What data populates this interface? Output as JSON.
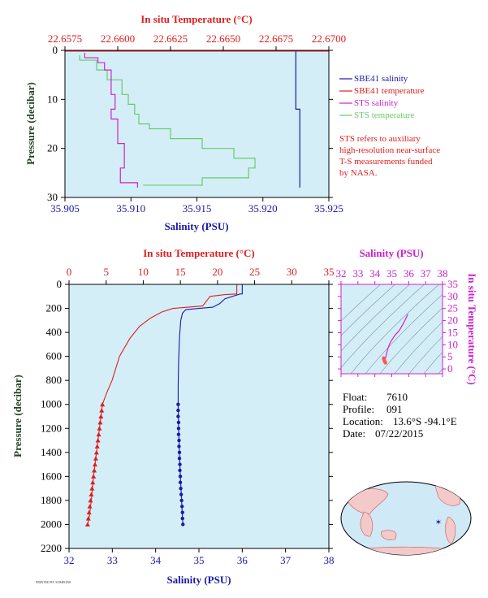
{
  "colors": {
    "blue": "#1a1aa8",
    "red": "#e01e1e",
    "magenta": "#cc22cc",
    "pink": "#f08f8f",
    "green": "#66cc66",
    "plot_bg": "#d4eef8",
    "dark_green": "#224422"
  },
  "chart_data": [
    {
      "type": "line",
      "xlabel_bottom": "Salinity (PSU)",
      "xlabel_top": "In situ Temperature (°C)",
      "ylabel": "Pressure (decibar)",
      "salinity_ticks": [
        "35.905",
        "35.910",
        "35.915",
        "35.920",
        "35.925"
      ],
      "temperature_ticks": [
        "22.6575",
        "22.6600",
        "22.6625",
        "22.6650",
        "22.6675",
        "22.6700"
      ],
      "pressure_ticks": [
        "0",
        "10",
        "20",
        "30"
      ],
      "xlim_salinity": [
        35.905,
        35.925
      ],
      "xlim_temperature": [
        22.6575,
        22.67
      ],
      "ylim": [
        0,
        30
      ],
      "legend": [
        "SBE41 salinity",
        "SBE41 temperature",
        "STS salinity",
        "STS temperature"
      ],
      "note": [
        "STS refers to auxiliary",
        "high-resolution near-surface",
        "T-S measurements funded",
        "by NASA."
      ],
      "series": [
        {
          "name": "SBE41 salinity",
          "x": [
            35.9225,
            35.9225,
            35.9228,
            35.9228
          ],
          "y": [
            0,
            12,
            12,
            28
          ]
        },
        {
          "name": "SBE41 temperature",
          "x": [
            22.6575,
            22.67
          ],
          "y": [
            0,
            0
          ]
        },
        {
          "name": "STS salinity",
          "x": [
            35.9065,
            35.9075,
            35.908,
            35.9085,
            35.9085,
            35.9088,
            35.9085,
            35.909,
            35.909,
            35.9095,
            35.9095,
            35.9092,
            35.9092,
            35.9105,
            35.9105
          ],
          "y": [
            0.5,
            1.5,
            2.5,
            4,
            7,
            9,
            12,
            14,
            17,
            19,
            22,
            24,
            26,
            27,
            28
          ]
        },
        {
          "name": "STS temperature",
          "x": [
            22.6582,
            22.659,
            22.6595,
            22.6602,
            22.6605,
            22.6608,
            22.661,
            22.6615,
            22.6625,
            22.664,
            22.6655,
            22.6665,
            22.6662,
            22.664,
            22.6612
          ],
          "y": [
            1,
            2,
            4,
            6,
            9,
            11,
            13,
            15,
            16,
            18,
            20,
            22,
            24,
            26,
            27.5
          ]
        }
      ]
    },
    {
      "type": "line",
      "xlabel_bottom": "Salinity (PSU)",
      "xlabel_top": "In situ Temperature (°C)",
      "ylabel": "Pressure (decibar)",
      "salinity_ticks": [
        "32",
        "33",
        "34",
        "35",
        "36",
        "37",
        "38"
      ],
      "temperature_ticks": [
        "0",
        "5",
        "10",
        "15",
        "20",
        "25",
        "30",
        "35"
      ],
      "pressure_ticks": [
        "0",
        "200",
        "400",
        "600",
        "800",
        "1000",
        "1200",
        "1400",
        "1600",
        "1800",
        "2000",
        "2200"
      ],
      "xlim_salinity": [
        32,
        38
      ],
      "xlim_temperature": [
        0,
        35
      ],
      "ylim": [
        0,
        2200
      ],
      "series": [
        {
          "name": "Salinity",
          "x": [
            36.0,
            36.0,
            35.95,
            35.6,
            35.48,
            35.32,
            35.0,
            34.7,
            34.62,
            34.58,
            34.55,
            34.53,
            34.52,
            34.52,
            34.53,
            34.55,
            34.57,
            34.6,
            34.62,
            34.63
          ],
          "y": [
            0,
            80,
            80,
            120,
            160,
            190,
            200,
            210,
            240,
            300,
            450,
            650,
            850,
            1000,
            1200,
            1400,
            1600,
            1800,
            1950,
            2000
          ]
        },
        {
          "name": "Temperature",
          "x": [
            22.6,
            22.6,
            21.0,
            19.0,
            18.0,
            14.0,
            12.5,
            11.0,
            9.5,
            8.2,
            6.8,
            5.8,
            5.1,
            4.5,
            4.1,
            3.7,
            3.3,
            3.0,
            2.7,
            2.5
          ],
          "y": [
            0,
            80,
            85,
            100,
            180,
            200,
            230,
            280,
            350,
            450,
            600,
            800,
            900,
            1000,
            1200,
            1400,
            1600,
            1800,
            1950,
            2000
          ]
        }
      ],
      "markers": {
        "pressure": [
          1000,
          1050,
          1100,
          1150,
          1200,
          1250,
          1300,
          1350,
          1400,
          1450,
          1500,
          1550,
          1600,
          1650,
          1700,
          1750,
          1800,
          1850,
          1900,
          1950,
          2000
        ],
        "salinity": [
          34.52,
          34.52,
          34.52,
          34.53,
          34.53,
          34.53,
          34.54,
          34.54,
          34.55,
          34.55,
          34.56,
          34.56,
          34.57,
          34.57,
          34.58,
          34.59,
          34.6,
          34.61,
          34.62,
          34.62,
          34.63
        ],
        "temperature": [
          4.5,
          4.4,
          4.3,
          4.2,
          4.1,
          4.0,
          3.9,
          3.8,
          3.7,
          3.6,
          3.5,
          3.4,
          3.3,
          3.2,
          3.1,
          3.0,
          2.9,
          2.8,
          2.7,
          2.6,
          2.5
        ]
      }
    },
    {
      "type": "line",
      "xlabel_top": "Salinity (PSU)",
      "ylabel_right": "In situ Temperature (°C)",
      "salinity_ticks": [
        "32",
        "33",
        "34",
        "35",
        "36",
        "37",
        "38"
      ],
      "temperature_ticks": [
        "0",
        "5",
        "10",
        "15",
        "20",
        "25",
        "30",
        "35"
      ],
      "xlim": [
        32,
        38
      ],
      "ylim": [
        -2,
        35
      ],
      "series": [
        {
          "name": "T-S",
          "x": [
            35.95,
            35.7,
            35.45,
            35.2,
            35.0,
            34.85,
            34.75,
            34.7,
            34.65,
            34.6,
            34.58,
            34.6,
            34.62
          ],
          "y": [
            22.6,
            19,
            16,
            14,
            12,
            10,
            8,
            6.5,
            5,
            4,
            3.5,
            3.0,
            2.5
          ]
        }
      ]
    }
  ],
  "float_info": {
    "float_label": "Float:",
    "float_value": "7610",
    "profile_label": "Profile:",
    "profile_value": "091",
    "location_label": "Location:",
    "location_value": "13.6°S  -94.1°E",
    "date_label": "Date:",
    "date_value": "07/22/2015"
  },
  "footer": "PRINTED BY SOMEONE"
}
